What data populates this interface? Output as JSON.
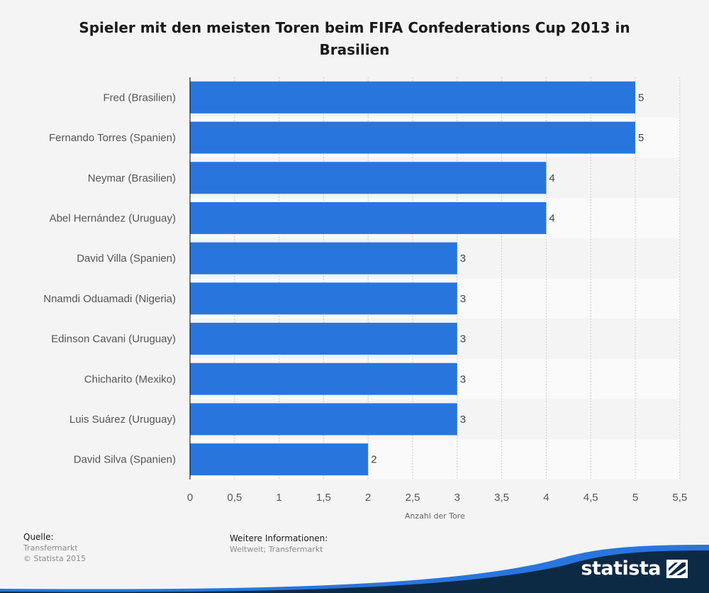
{
  "title": "Spieler mit den meisten Toren beim FIFA Confederations Cup 2013 in Brasilien",
  "chart_data": {
    "type": "bar",
    "orientation": "horizontal",
    "title": "Spieler mit den meisten Toren beim FIFA Confederations Cup 2013 in Brasilien",
    "categories": [
      "Fred (Brasilien)",
      "Fernando Torres (Spanien)",
      "Neymar (Brasilien)",
      "Abel Hernández (Uruguay)",
      "David Villa (Spanien)",
      "Nnamdi Oduamadi (Nigeria)",
      "Edinson Cavani (Uruguay)",
      "Chicharito (Mexiko)",
      "Luis Suárez (Uruguay)",
      "David Silva (Spanien)"
    ],
    "values": [
      5,
      5,
      4,
      4,
      3,
      3,
      3,
      3,
      3,
      2
    ],
    "value_labels": [
      "5",
      "5",
      "4",
      "4",
      "3",
      "3",
      "3",
      "3",
      "3",
      "2"
    ],
    "xlabel": "Anzahl der Tore",
    "ylabel": "",
    "xlim": [
      0,
      5.5
    ],
    "ticks": [
      "0",
      "0,5",
      "1",
      "1,5",
      "2",
      "2,5",
      "3",
      "3,5",
      "4",
      "4,5",
      "5",
      "5,5"
    ],
    "grid": true,
    "bar_color": "#2876dd",
    "legend": "none"
  },
  "footer": {
    "source_heading": "Quelle:",
    "source_lines": [
      "Transfermarkt",
      "© Statista 2015"
    ],
    "info_heading": "Weitere Informationen:",
    "info_lines": [
      "Weltweit; Transfermarkt"
    ]
  },
  "brand": {
    "name": "statista",
    "icon": "statista-logo-icon",
    "band_color": "#0d2a45",
    "accent_color": "#2876dd"
  }
}
